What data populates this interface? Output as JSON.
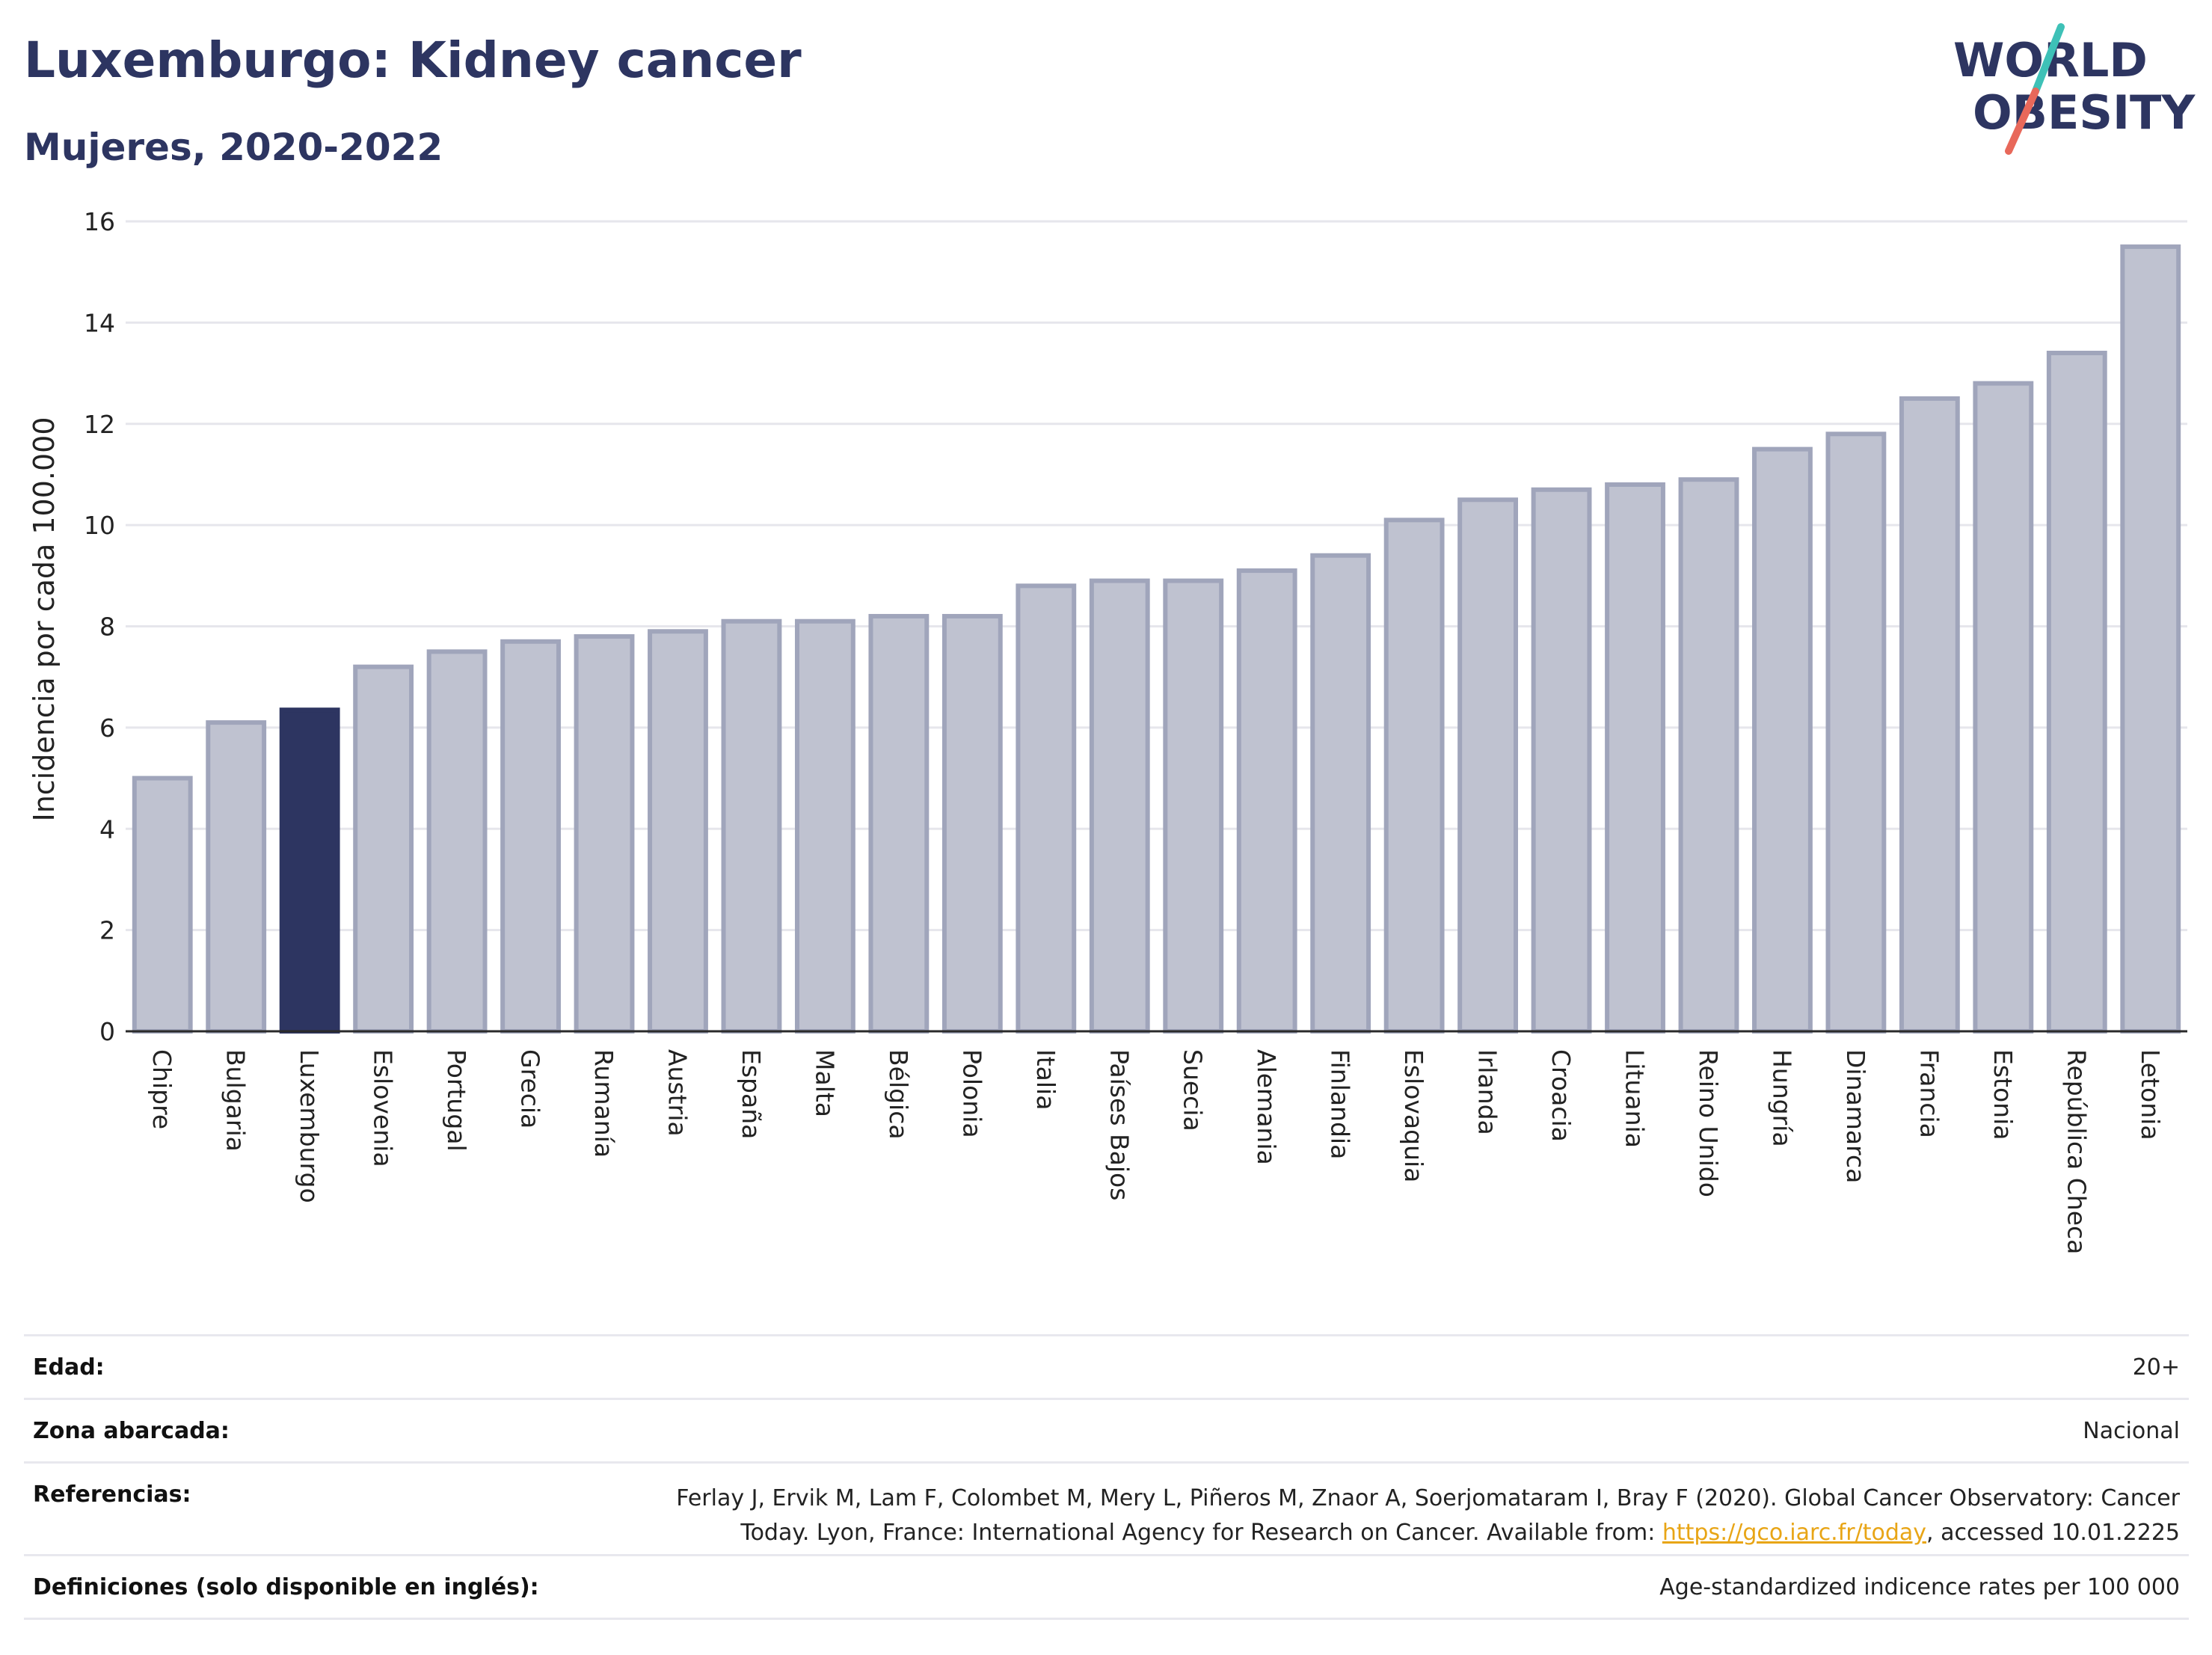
{
  "header": {
    "title": "Luxemburgo: Kidney cancer",
    "subtitle": "Mujeres, 2020-2022"
  },
  "logo": {
    "line1": "WORLD",
    "line2": "OBESITY",
    "colors": {
      "text": "#2d3561",
      "slash_top": "#3ec1b7",
      "slash_bottom": "#e8685a"
    }
  },
  "chart_data": {
    "type": "bar",
    "ylabel": "Incidencia por cada 100.000",
    "ylim": [
      0,
      16
    ],
    "yticks": [
      0,
      2,
      4,
      6,
      8,
      10,
      12,
      14,
      16
    ],
    "grid": true,
    "categories": [
      "Chipre",
      "Bulgaria",
      "Luxemburgo",
      "Eslovenia",
      "Portugal",
      "Grecia",
      "Rumanía",
      "Austria",
      "España",
      "Malta",
      "Bélgica",
      "Polonia",
      "Italia",
      "Países Bajos",
      "Suecia",
      "Alemania",
      "Finlandia",
      "Eslovaquia",
      "Irlanda",
      "Croacia",
      "Lituania",
      "Reino Unido",
      "Hungría",
      "Dinamarca",
      "Francia",
      "Estonia",
      "República Checa",
      "Letonia"
    ],
    "values": [
      5.0,
      6.1,
      6.35,
      7.2,
      7.5,
      7.7,
      7.8,
      7.9,
      8.1,
      8.1,
      8.2,
      8.2,
      8.8,
      8.9,
      8.9,
      9.1,
      9.4,
      10.1,
      10.5,
      10.7,
      10.8,
      10.9,
      11.5,
      11.8,
      12.5,
      12.8,
      13.4,
      15.5
    ],
    "highlight": "Luxemburgo",
    "colors": {
      "bar": "#bfc2d0",
      "bar_border": "#a0a5bb",
      "highlight": "#2d3561",
      "grid": "#e6e6ec",
      "axis": "#2a2a2a"
    }
  },
  "meta": {
    "edad_label": "Edad:",
    "edad_value": "20+",
    "zona_label": "Zona abarcada:",
    "zona_value": "Nacional",
    "ref_label": "Referencias:",
    "ref_line1": "Ferlay J, Ervik M, Lam F, Colombet M, Mery L, Piñeros M, Znaor A, Soerjomataram I, Bray F (2020). Global Cancer Observatory: Cancer",
    "ref_line2_pre": "Today. Lyon, France: International Agency for Research on Cancer. Available from: ",
    "ref_link": "https://gco.iarc.fr/today",
    "ref_line2_post": ", accessed 10.01.2225",
    "def_label": "Definiciones (solo disponible en inglés):",
    "def_value": "Age-standardized indicence rates per 100 000"
  }
}
